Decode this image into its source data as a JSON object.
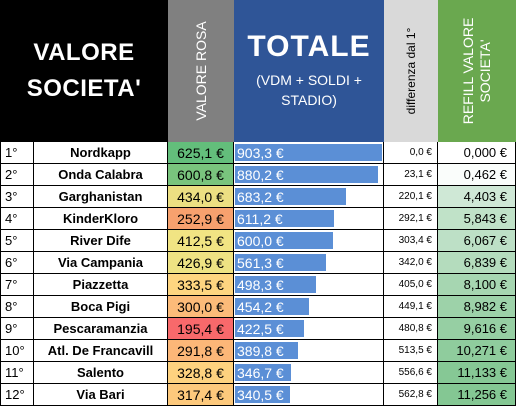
{
  "header": {
    "valore_line1": "VALORE",
    "valore_line2": "SOCIETA'",
    "valore_rosa": "VALORE ROSA",
    "totale_title": "TOTALE",
    "totale_sub1": "(VDM + SOLDI +",
    "totale_sub2": "STADIO)",
    "differenza": "differenza dal 1°",
    "refill_line1": "REFILL VALORE",
    "refill_line2": "SOCIETA'"
  },
  "colors": {
    "valore_header": "#000000",
    "rosa_header": "#808080",
    "totale_header": "#2f5597",
    "diff_header": "#d9d9d9",
    "refill_header": "#6aa84f",
    "total_bar": "#5b8fd6"
  },
  "rows": [
    {
      "rank": "1°",
      "team": "Nordkapp",
      "rosa": "625,1 €",
      "totale": "903,3 €",
      "diff": "0,0 €",
      "refill": "0,000 €",
      "rosa_color": "#63be7b",
      "refill_color": "#ffffff",
      "total_value": 903.3
    },
    {
      "rank": "2°",
      "team": "Onda Calabra",
      "rosa": "600,8 €",
      "totale": "880,2 €",
      "diff": "23,1 €",
      "refill": "0,462 €",
      "rosa_color": "#79c47d",
      "refill_color": "#fafdfb",
      "total_value": 880.2
    },
    {
      "rank": "3°",
      "team": "Garghanistan",
      "rosa": "434,0 €",
      "totale": "683,2 €",
      "diff": "220,1 €",
      "refill": "4,403 €",
      "rosa_color": "#ecdf82",
      "refill_color": "#cfe8d6",
      "total_value": 683.2
    },
    {
      "rank": "4°",
      "team": "KinderKloro",
      "rosa": "252,9 €",
      "totale": "611,2 €",
      "diff": "292,1 €",
      "refill": "5,843 €",
      "rosa_color": "#f7a16e",
      "refill_color": "#c0e2c8",
      "total_value": 611.2
    },
    {
      "rank": "5°",
      "team": "River Dife",
      "rosa": "412,5 €",
      "totale": "600,0 €",
      "diff": "303,4 €",
      "refill": "6,067 €",
      "rosa_color": "#f1e483",
      "refill_color": "#bde0c6",
      "total_value": 600.0
    },
    {
      "rank": "6°",
      "team": "Via Campania",
      "rosa": "426,9 €",
      "totale": "561,3 €",
      "diff": "342,0 €",
      "refill": "6,839 €",
      "rosa_color": "#eee283",
      "refill_color": "#b4dcbd",
      "total_value": 561.3
    },
    {
      "rank": "7°",
      "team": "Piazzetta",
      "rosa": "333,5 €",
      "totale": "498,3 €",
      "diff": "405,0 €",
      "refill": "8,100 €",
      "rosa_color": "#fed580",
      "refill_color": "#a6d6b1",
      "total_value": 498.3
    },
    {
      "rank": "8°",
      "team": "Boca Pigi",
      "rosa": "300,0 €",
      "totale": "454,2 €",
      "diff": "449,1 €",
      "refill": "8,982 €",
      "rosa_color": "#fcbb79",
      "refill_color": "#9dd2a9",
      "total_value": 454.2
    },
    {
      "rank": "9°",
      "team": "Pescaramanzia",
      "rosa": "195,4 €",
      "totale": "422,5 €",
      "diff": "480,8 €",
      "refill": "9,616 €",
      "rosa_color": "#f8696b",
      "refill_color": "#96cfa3",
      "total_value": 422.5
    },
    {
      "rank": "10°",
      "team": "Atl. De Francavill",
      "rosa": "291,8 €",
      "totale": "389,8 €",
      "diff": "513,5 €",
      "refill": "10,271 €",
      "rosa_color": "#fcb778",
      "refill_color": "#8fcc9d",
      "total_value": 389.8
    },
    {
      "rank": "11°",
      "team": "Salento",
      "rosa": "328,8 €",
      "totale": "346,7 €",
      "diff": "556,6 €",
      "refill": "11,133 €",
      "rosa_color": "#fed27f",
      "refill_color": "#86c895",
      "total_value": 346.7
    },
    {
      "rank": "12°",
      "team": "Via Bari",
      "rosa": "317,4 €",
      "totale": "340,5 €",
      "diff": "562,8 €",
      "refill": "11,256 €",
      "rosa_color": "#fdc97c",
      "refill_color": "#84c793",
      "total_value": 340.5
    }
  ]
}
